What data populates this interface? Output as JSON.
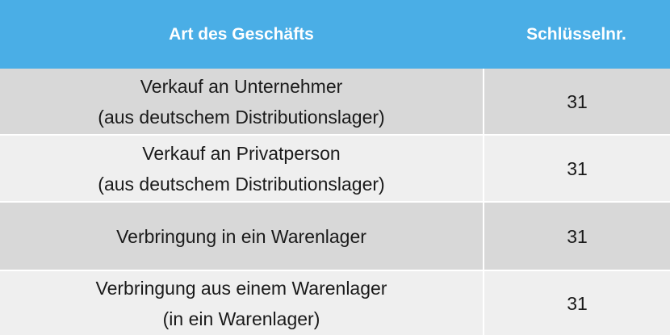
{
  "table": {
    "headers": {
      "type": "Art des Geschäfts",
      "key": "Schlüsselnr."
    },
    "rows": [
      {
        "type_lines": [
          "Verkauf an Unternehmer",
          "(aus deutschem Distributionslager)"
        ],
        "key": "31"
      },
      {
        "type_lines": [
          "Verkauf an Privatperson",
          "(aus deutschem Distributionslager)"
        ],
        "key": "31"
      },
      {
        "type_lines": [
          "Verbringung in ein Warenlager"
        ],
        "key": "31"
      },
      {
        "type_lines": [
          "Verbringung aus einem Warenlager",
          "(in ein Warenlager)"
        ],
        "key": "31"
      }
    ]
  },
  "colors": {
    "header_bg": "#4aaee6",
    "row_dark": "#d8d8d8",
    "row_light": "#efefef"
  }
}
